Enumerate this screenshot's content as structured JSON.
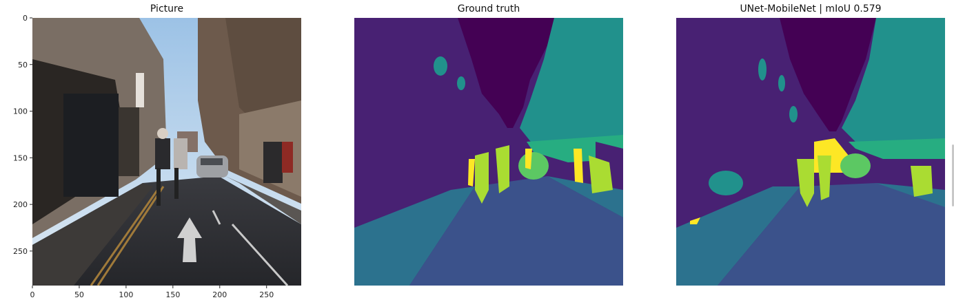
{
  "panels": [
    {
      "title": "Picture"
    },
    {
      "title": "Ground truth"
    },
    {
      "title": "UNet-MobileNet | mIoU 0.579"
    }
  ],
  "axes": {
    "x_ticks": [
      "0",
      "50",
      "100",
      "150",
      "200",
      "250"
    ],
    "y_ticks": [
      "0",
      "50",
      "100",
      "150",
      "200",
      "250"
    ],
    "x_range": [
      0,
      287
    ],
    "y_range": [
      0,
      287
    ]
  },
  "colors": {
    "sky": "#440154",
    "building": "#482173",
    "tree": "#2e6e8e",
    "road": "#3b528b",
    "sidewalk": "#2c728e",
    "tree_teal": "#21918c",
    "pole": "#27ad81",
    "car": "#5cc863",
    "person": "#aadc32",
    "bicycle": "#fde725"
  }
}
